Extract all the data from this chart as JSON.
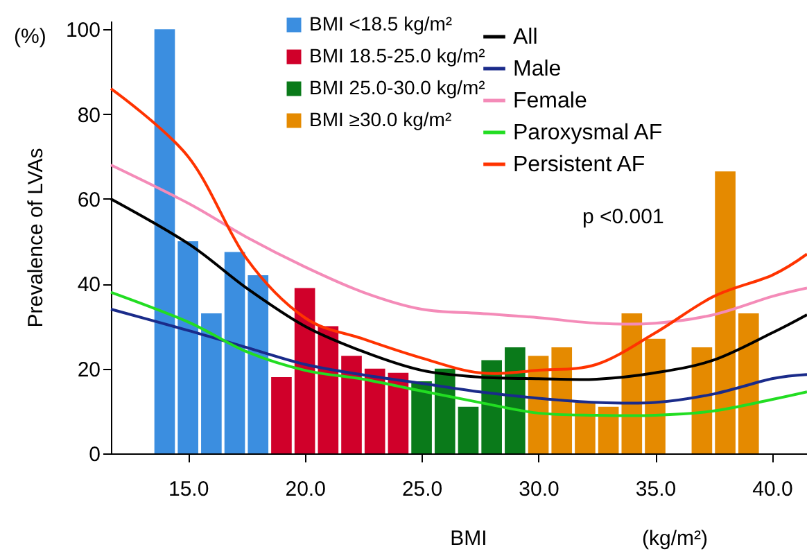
{
  "chart_data": {
    "type": "bar",
    "xlabel": "BMI",
    "ylabel": "Prevalence of LVAs",
    "annotations": [
      "(%)",
      "p <0.001",
      "(kg/m²)"
    ],
    "xlim": [
      11.7,
      41.5
    ],
    "xticks": [
      {
        "value": 15,
        "label": "15.0"
      },
      {
        "value": 20,
        "label": "20.0"
      },
      {
        "value": 25,
        "label": "25.0"
      },
      {
        "value": 30,
        "label": "30.0"
      },
      {
        "value": 35,
        "label": "35.0"
      },
      {
        "value": 40,
        "label": "40.0"
      }
    ],
    "ylim": [
      0,
      102
    ],
    "yticks": [
      0,
      20,
      40,
      60,
      80,
      100
    ],
    "grid": false,
    "legend": "top",
    "series": [
      {
        "name": "BMI <18.5 kg/m²",
        "color": "#3b8ee0",
        "x": [
          14,
          15,
          16,
          17,
          18
        ],
        "values": [
          100,
          50,
          33,
          47.5,
          42
        ]
      },
      {
        "name": "BMI 18.5-25.0 kg/m²",
        "color": "#d0002a",
        "x": [
          19,
          20,
          21,
          22,
          23,
          24
        ],
        "values": [
          18,
          39,
          30,
          23,
          20,
          19
        ]
      },
      {
        "name": "BMI 25.0-30.0 kg/m²",
        "color": "#0a7a1a",
        "x": [
          25,
          26,
          27,
          28,
          29
        ],
        "values": [
          17,
          20,
          11,
          22,
          25
        ]
      },
      {
        "name": "BMI ≥30.0 kg/m²",
        "color": "#e58a00",
        "x": [
          30,
          31,
          32,
          33,
          34,
          35,
          37,
          38,
          39
        ],
        "values": [
          23,
          25,
          12,
          11,
          33,
          27,
          25,
          66.5,
          33
        ]
      },
      {
        "name": "All",
        "type": "line",
        "color": "#000000",
        "x": [
          11.7,
          15,
          17.5,
          20,
          22.5,
          25,
          27.5,
          30,
          32.5,
          35,
          37.5,
          40,
          41.5
        ],
        "values": [
          60,
          49.5,
          39,
          30,
          24,
          19.6,
          18,
          17.6,
          17.5,
          19,
          22,
          28.4,
          32.7
        ]
      },
      {
        "name": "Male",
        "type": "line",
        "color": "#1a2b8a",
        "x": [
          11.7,
          15,
          17.5,
          20,
          22.5,
          25,
          27.5,
          30,
          32.5,
          35,
          37.5,
          40,
          41.5
        ],
        "values": [
          34,
          29,
          25,
          21,
          18.5,
          16.5,
          14.5,
          13,
          12,
          12,
          14,
          17.6,
          18.6
        ]
      },
      {
        "name": "Female",
        "type": "line",
        "color": "#f48bb8",
        "x": [
          11.7,
          15,
          17.5,
          20,
          22.5,
          25,
          27.5,
          30,
          32.5,
          35,
          37.5,
          40,
          41.5
        ],
        "values": [
          68,
          59,
          51,
          44,
          38,
          34,
          33,
          32,
          30.7,
          30.7,
          32.7,
          37,
          39
        ]
      },
      {
        "name": "Paroxysmal AF",
        "type": "line",
        "color": "#22dd22",
        "x": [
          11.7,
          15,
          17.5,
          20,
          22.5,
          25,
          27.5,
          30,
          32.5,
          35,
          37.5,
          40,
          41.5
        ],
        "values": [
          38,
          31,
          24,
          19.6,
          17.5,
          14.7,
          12,
          9.5,
          9,
          9,
          10,
          12.7,
          14.5
        ]
      },
      {
        "name": "Persistent AF",
        "type": "line",
        "color": "#ff3300",
        "x": [
          11.7,
          15,
          17.5,
          20,
          22.5,
          25,
          27.5,
          30,
          32.5,
          35,
          37.5,
          40,
          41.5
        ],
        "values": [
          86,
          70,
          46,
          32,
          27,
          22.5,
          19,
          19.6,
          21,
          28.4,
          37,
          42,
          47
        ]
      }
    ]
  }
}
